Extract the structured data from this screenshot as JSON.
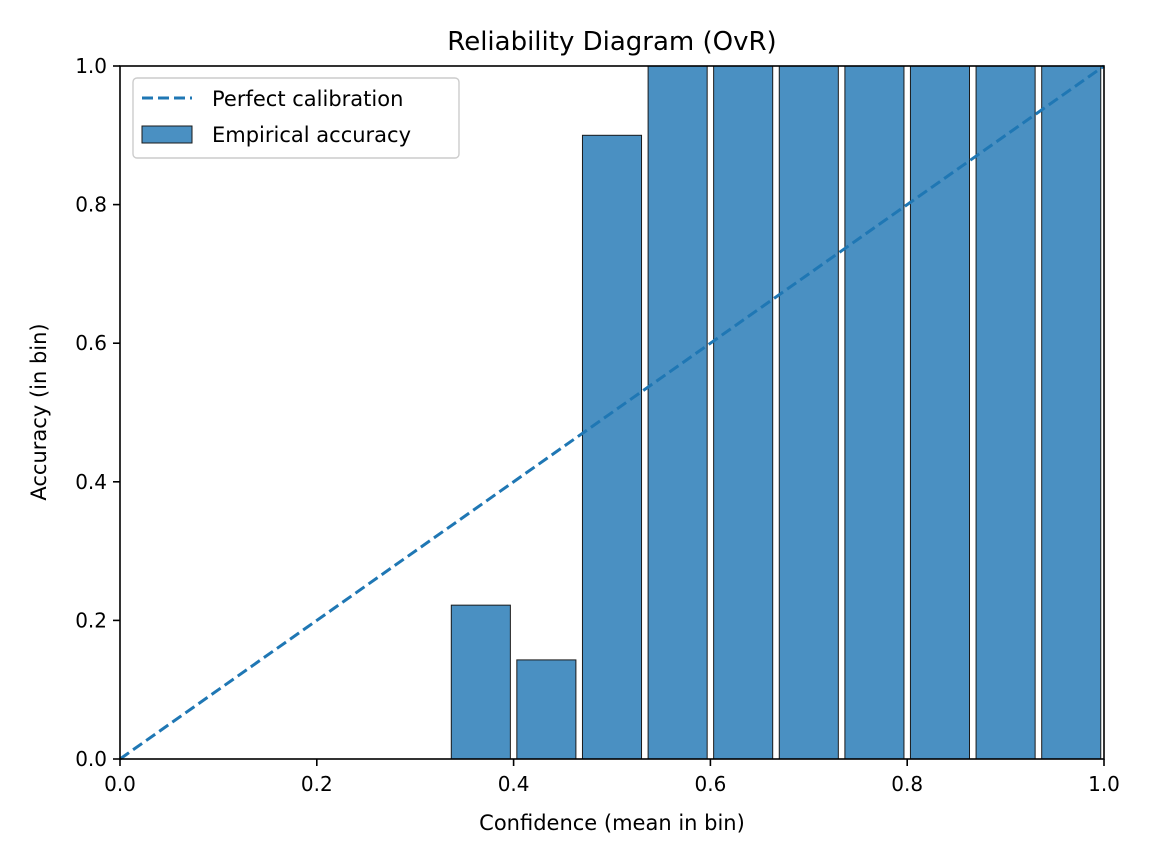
{
  "chart_data": {
    "type": "bar",
    "title": "Reliability Diagram (OvR)",
    "xlabel": "Confidence (mean in bin)",
    "ylabel": "Accuracy (in bin)",
    "xlim": [
      0.0,
      1.0
    ],
    "ylim": [
      0.0,
      1.0
    ],
    "x_ticks": [
      "0.0",
      "0.2",
      "0.4",
      "0.6",
      "0.8",
      "1.0"
    ],
    "y_ticks": [
      "0.0",
      "0.2",
      "0.4",
      "0.6",
      "0.8",
      "1.0"
    ],
    "grid": false,
    "legend_position": "top-left",
    "bin_width": 0.0667,
    "bars": [
      {
        "center": 0.3667,
        "value": 0.222
      },
      {
        "center": 0.4333,
        "value": 0.143
      },
      {
        "center": 0.5,
        "value": 0.9
      },
      {
        "center": 0.5667,
        "value": 1.0
      },
      {
        "center": 0.6333,
        "value": 1.0
      },
      {
        "center": 0.7,
        "value": 1.0
      },
      {
        "center": 0.7667,
        "value": 1.0
      },
      {
        "center": 0.8333,
        "value": 1.0
      },
      {
        "center": 0.9,
        "value": 1.0
      },
      {
        "center": 0.9667,
        "value": 1.0
      }
    ],
    "reference_line": {
      "name": "Perfect calibration",
      "x": [
        0.0,
        1.0
      ],
      "y": [
        0.0,
        1.0
      ]
    },
    "series": [
      {
        "name": "Perfect calibration",
        "kind": "line",
        "style": "dashed"
      },
      {
        "name": "Empirical accuracy",
        "kind": "bar"
      }
    ],
    "colors": {
      "bar_fill": "#4a90c2",
      "bar_edge": "#1a1a1a",
      "line": "#1f77b4"
    }
  }
}
